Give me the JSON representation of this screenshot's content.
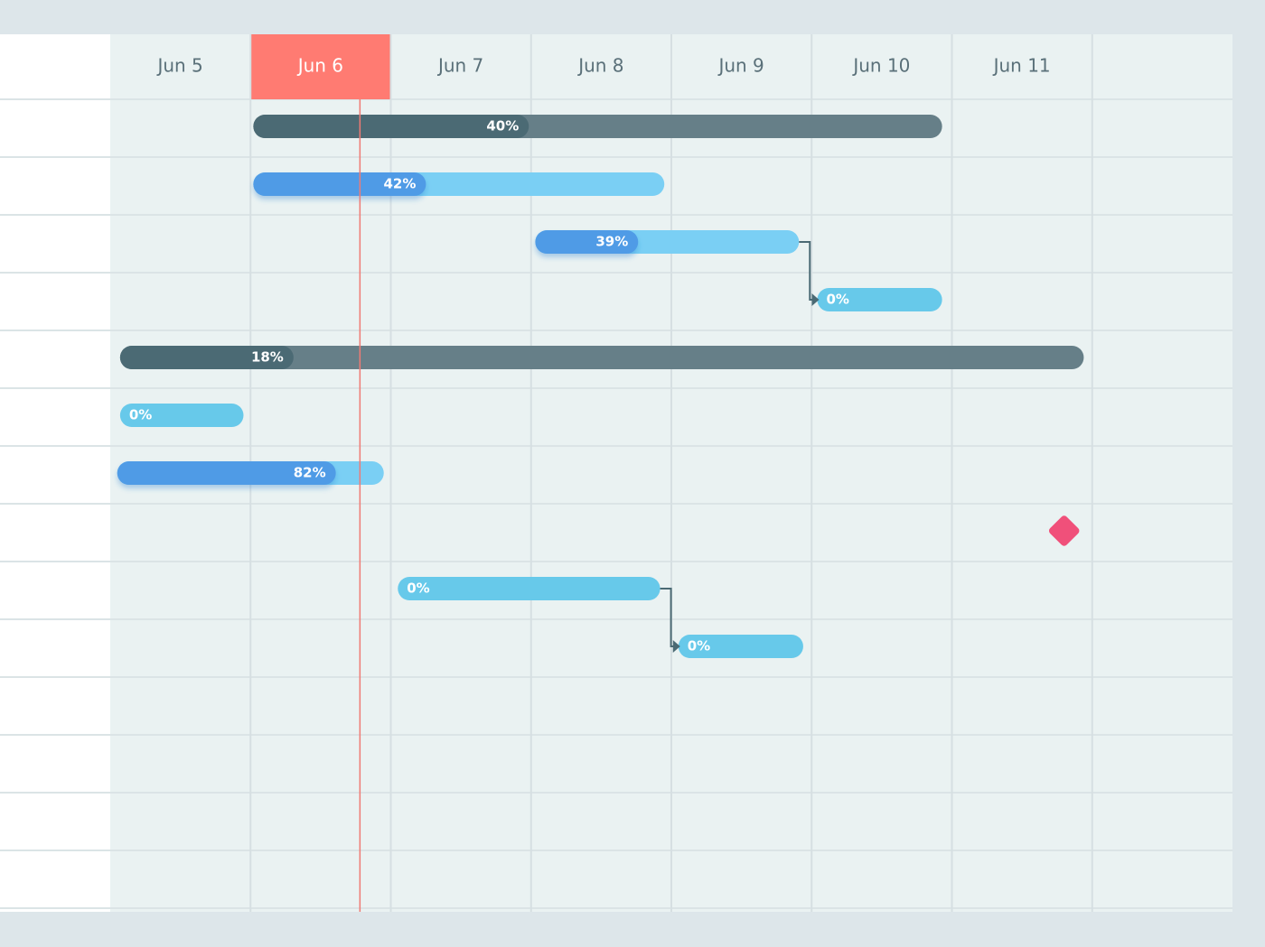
{
  "chart_data": {
    "type": "gantt",
    "xlim": [
      5,
      13
    ],
    "xticks": [
      {
        "value": 5,
        "label": "Jun 5"
      },
      {
        "value": 6,
        "label": "Jun 6"
      },
      {
        "value": 7,
        "label": "Jun 7"
      },
      {
        "value": 8,
        "label": "Jun 8"
      },
      {
        "value": 9,
        "label": "Jun 9"
      },
      {
        "value": 10,
        "label": "Jun 10"
      },
      {
        "value": 11,
        "label": "Jun 11"
      },
      12
    ],
    "highlight_tick": 1,
    "today": 6.78,
    "grid": true,
    "summary_color": "#667f88",
    "summary_progress_color": "#4b6a74",
    "task_color": "#7acff4",
    "task_progress_color": "#4f9be6",
    "empty_task_color": "#67c9ea",
    "milestone_color": "#f0507a",
    "today_color": "#f07a74",
    "highlight_color": "#ff7b72",
    "tasks": [
      {
        "kind": "summary",
        "start": 6.02,
        "end": 10.93,
        "value": 40,
        "value_label": "40%"
      },
      {
        "kind": "task",
        "start": 6.02,
        "end": 8.95,
        "value": 42,
        "value_label": "42%"
      },
      {
        "kind": "task",
        "start": 8.03,
        "end": 9.91,
        "value": 39,
        "value_label": "39%"
      },
      {
        "kind": "task",
        "start": 10.04,
        "end": 10.93,
        "value": 0,
        "value_label": "0%",
        "depends_on": 2
      },
      {
        "kind": "summary",
        "start": 5.07,
        "end": 11.94,
        "value": 18,
        "value_label": "18%"
      },
      {
        "kind": "task",
        "start": 5.07,
        "end": 5.95,
        "value": 0,
        "value_label": "0%"
      },
      {
        "kind": "task",
        "start": 5.05,
        "end": 6.95,
        "value": 82,
        "value_label": "82%"
      },
      {
        "kind": "milestone",
        "start": 11.8
      },
      {
        "kind": "task",
        "start": 7.05,
        "end": 8.92,
        "value": 0,
        "value_label": "0%"
      },
      {
        "kind": "task",
        "start": 9.05,
        "end": 9.94,
        "value": 0,
        "value_label": "0%",
        "depends_on": 8
      }
    ]
  }
}
